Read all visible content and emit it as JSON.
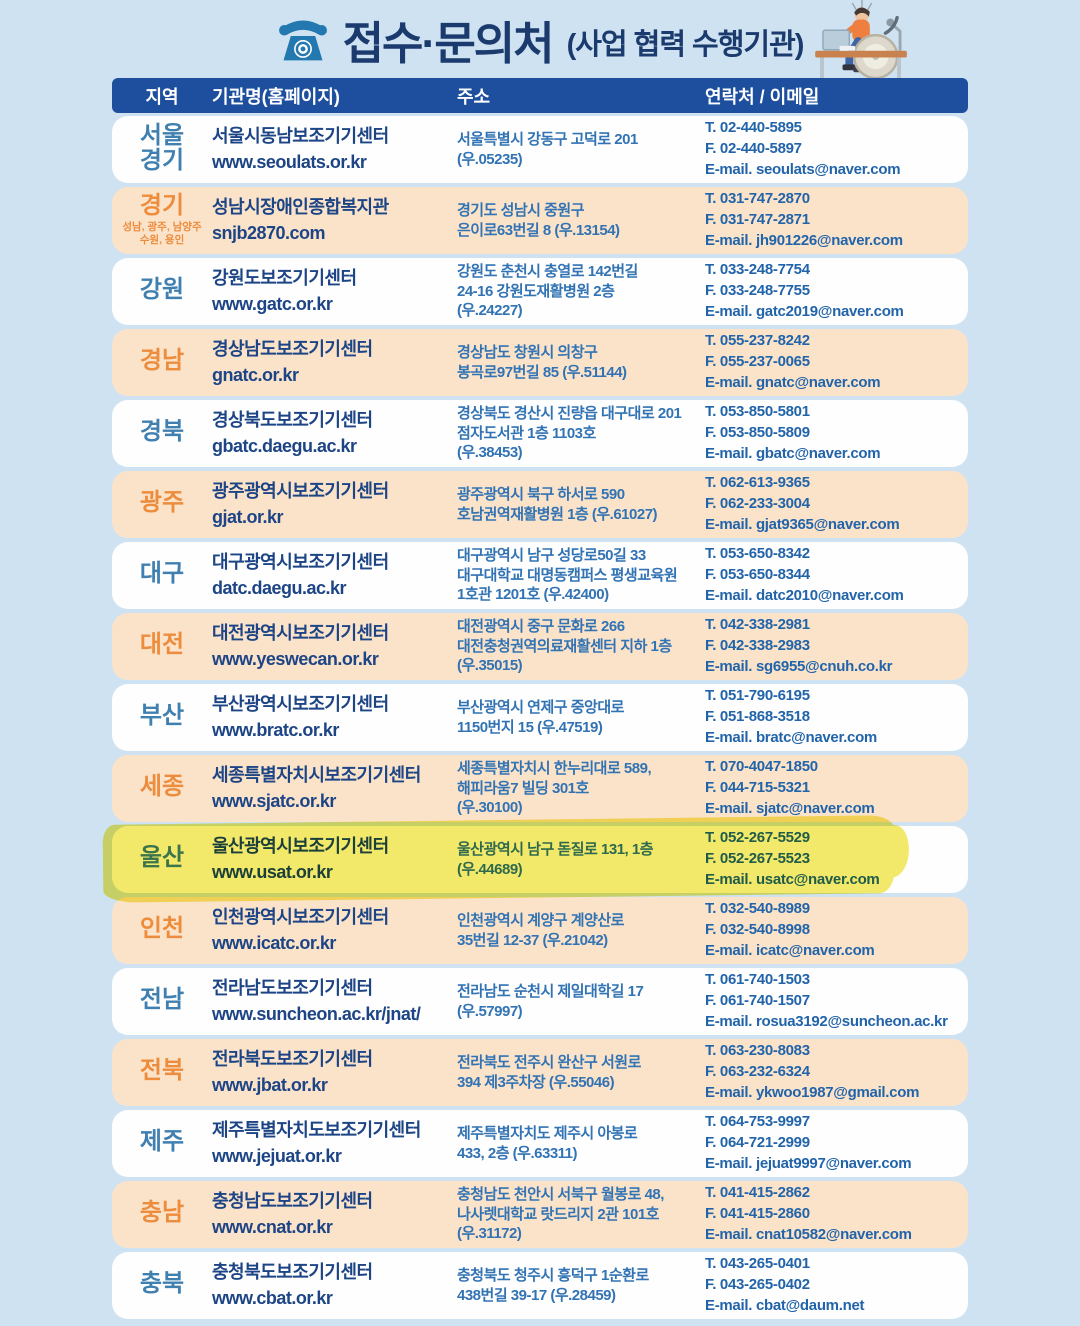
{
  "header": {
    "icon": "rotary-phone-icon",
    "title": "접수·문의처",
    "subtitle": "(사업 협력 수행기관)",
    "illustration": "person-in-wheelchair-at-desk"
  },
  "colors": {
    "page_background": "#cfe2f1",
    "header_bar": "#1d4f9e",
    "row_white": "#fefefe",
    "row_peach": "#fbe3ca",
    "region_blue": "#4080b0",
    "region_orange": "#ec8c3c",
    "org_navy": "#1d4586",
    "address_blue": "#3273b4",
    "contact_blue": "#2264aa",
    "title_navy": "#1b3a6d",
    "highlight_yellow": "#f2e95e"
  },
  "table": {
    "headers": [
      "지역",
      "기관명(홈페이지)",
      "주소",
      "연락처 / 이메일"
    ],
    "rows": [
      {
        "region_lines": [
          "서울",
          "경기"
        ],
        "accent": "blue",
        "org_name": "서울시동남보조기기센터",
        "org_url": "www.seoulats.or.kr",
        "address_lines": [
          "서울특별시 강동구 고덕로 201",
          "(우.05235)"
        ],
        "tel": "T. 02-440-5895",
        "fax": "F. 02-440-5897",
        "email": "E-mail. seoulats@naver.com"
      },
      {
        "region_lines": [
          "경기"
        ],
        "region_note_lines": [
          "성남, 광주, 남양주",
          "수원, 용인"
        ],
        "accent": "orange",
        "org_name": "성남시장애인종합복지관",
        "org_url": "snjb2870.com",
        "address_lines": [
          "경기도 성남시 중원구",
          "은이로63번길 8 (우.13154)"
        ],
        "tel": "T. 031-747-2870",
        "fax": "F. 031-747-2871",
        "email": "E-mail. jh901226@naver.com"
      },
      {
        "region_lines": [
          "강원"
        ],
        "accent": "blue",
        "org_name": "강원도보조기기센터",
        "org_url": "www.gatc.or.kr",
        "address_lines": [
          "강원도 춘천시 충열로 142번길",
          "24-16 강원도재활병원 2층",
          "(우.24227)"
        ],
        "tel": "T. 033-248-7754",
        "fax": "F. 033-248-7755",
        "email": "E-mail. gatc2019@naver.com"
      },
      {
        "region_lines": [
          "경남"
        ],
        "accent": "orange",
        "org_name": "경상남도보조기기센터",
        "org_url": "gnatc.or.kr",
        "address_lines": [
          "경상남도 창원시 의창구",
          "봉곡로97번길 85 (우.51144)"
        ],
        "tel": "T. 055-237-8242",
        "fax": "F. 055-237-0065",
        "email": "E-mail. gnatc@naver.com"
      },
      {
        "region_lines": [
          "경북"
        ],
        "accent": "blue",
        "org_name": "경상북도보조기기센터",
        "org_url": "gbatc.daegu.ac.kr",
        "address_lines": [
          "경상북도 경산시 진량읍 대구대로 201",
          "점자도서관 1층 1103호",
          "(우.38453)"
        ],
        "tel": "T. 053-850-5801",
        "fax": "F. 053-850-5809",
        "email": "E-mail. gbatc@naver.com"
      },
      {
        "region_lines": [
          "광주"
        ],
        "accent": "orange",
        "org_name": "광주광역시보조기기센터",
        "org_url": "gjat.or.kr",
        "address_lines": [
          "광주광역시 북구 하서로 590",
          "호남권역재활병원 1층 (우.61027)"
        ],
        "tel": "T. 062-613-9365",
        "fax": "F. 062-233-3004",
        "email": "E-mail. gjat9365@naver.com"
      },
      {
        "region_lines": [
          "대구"
        ],
        "accent": "blue",
        "org_name": "대구광역시보조기기센터",
        "org_url": "datc.daegu.ac.kr",
        "address_lines": [
          "대구광역시 남구 성당로50길 33",
          "대구대학교 대명동캠퍼스 평생교육원",
          "1호관 1201호 (우.42400)"
        ],
        "tel": "T. 053-650-8342",
        "fax": "F. 053-650-8344",
        "email": "E-mail. datc2010@naver.com"
      },
      {
        "region_lines": [
          "대전"
        ],
        "accent": "orange",
        "org_name": "대전광역시보조기기센터",
        "org_url": "www.yeswecan.or.kr",
        "address_lines": [
          "대전광역시 중구 문화로 266",
          "대전충청권역의료재활센터 지하 1층",
          "(우.35015)"
        ],
        "tel": "T. 042-338-2981",
        "fax": "F. 042-338-2983",
        "email": "E-mail. sg6955@cnuh.co.kr"
      },
      {
        "region_lines": [
          "부산"
        ],
        "accent": "blue",
        "org_name": "부산광역시보조기기센터",
        "org_url": "www.bratc.or.kr",
        "address_lines": [
          "부산광역시 연제구 중앙대로",
          "1150번지 15 (우.47519)"
        ],
        "tel": "T. 051-790-6195",
        "fax": "F. 051-868-3518",
        "email": "E-mail. bratc@naver.com"
      },
      {
        "region_lines": [
          "세종"
        ],
        "accent": "orange",
        "org_name": "세종특별자치시보조기기센터",
        "org_url": "www.sjatc.or.kr",
        "address_lines": [
          "세종특별자치시 한누리대로 589,",
          "해피라움7 빌딩  301호",
          "(우.30100)"
        ],
        "tel": "T. 070-4047-1850",
        "fax": "F. 044-715-5321",
        "email": "E-mail. sjatc@naver.com"
      },
      {
        "region_lines": [
          "울산"
        ],
        "accent": "blue",
        "highlighted": true,
        "org_name": "울산광역시보조기기센터",
        "org_url": "www.usat.or.kr",
        "address_lines": [
          "울산광역시 남구 돋질로 131, 1층",
          "(우.44689)"
        ],
        "tel": "T. 052-267-5529",
        "fax": "F. 052-267-5523",
        "email": "E-mail. usatc@naver.com"
      },
      {
        "region_lines": [
          "인천"
        ],
        "accent": "orange",
        "org_name": "인천광역시보조기기센터",
        "org_url": "www.icatc.or.kr",
        "address_lines": [
          "인천광역시 계양구 계양산로",
          "35번길 12-37 (우.21042)"
        ],
        "tel": "T. 032-540-8989",
        "fax": "F. 032-540-8998",
        "email": "E-mail. icatc@naver.com"
      },
      {
        "region_lines": [
          "전남"
        ],
        "accent": "blue",
        "org_name": "전라남도보조기기센터",
        "org_url": "www.suncheon.ac.kr/jnat/",
        "address_lines": [
          "전라남도 순천시 제일대학길 17",
          "(우.57997)"
        ],
        "tel": "T. 061-740-1503",
        "fax": "F. 061-740-1507",
        "email": "E-mail. rosua3192@suncheon.ac.kr"
      },
      {
        "region_lines": [
          "전북"
        ],
        "accent": "orange",
        "org_name": "전라북도보조기기센터",
        "org_url": "www.jbat.or.kr",
        "address_lines": [
          "전라북도 전주시 완산구 서원로",
          "394 제3주차장 (우.55046)"
        ],
        "tel": "T. 063-230-8083",
        "fax": "F. 063-232-6324",
        "email": "E-mail. ykwoo1987@gmail.com"
      },
      {
        "region_lines": [
          "제주"
        ],
        "accent": "blue",
        "org_name": "제주특별자치도보조기기센터",
        "org_url": "www.jejuat.or.kr",
        "address_lines": [
          "제주특별자치도 제주시 아봉로",
          "433, 2층 (우.63311)"
        ],
        "tel": "T. 064-753-9997",
        "fax": "F. 064-721-2999",
        "email": "E-mail. jejuat9997@naver.com"
      },
      {
        "region_lines": [
          "충남"
        ],
        "accent": "orange",
        "org_name": "충청남도보조기기센터",
        "org_url": "www.cnat.or.kr",
        "address_lines": [
          "충청남도 천안시 서북구 월봉로 48,",
          "나사렛대학교 랏드리지 2관 101호",
          "(우.31172)"
        ],
        "tel": "T. 041-415-2862",
        "fax": "F. 041-415-2860",
        "email": "E-mail. cnat10582@naver.com"
      },
      {
        "region_lines": [
          "충북"
        ],
        "accent": "blue",
        "org_name": "충청북도보조기기센터",
        "org_url": "www.cbat.or.kr",
        "address_lines": [
          "충청북도 청주시 흥덕구 1순환로",
          "438번길 39-17 (우.28459)"
        ],
        "tel": "T. 043-265-0401",
        "fax": "F. 043-265-0402",
        "email": "E-mail. cbat@daum.net"
      }
    ]
  }
}
